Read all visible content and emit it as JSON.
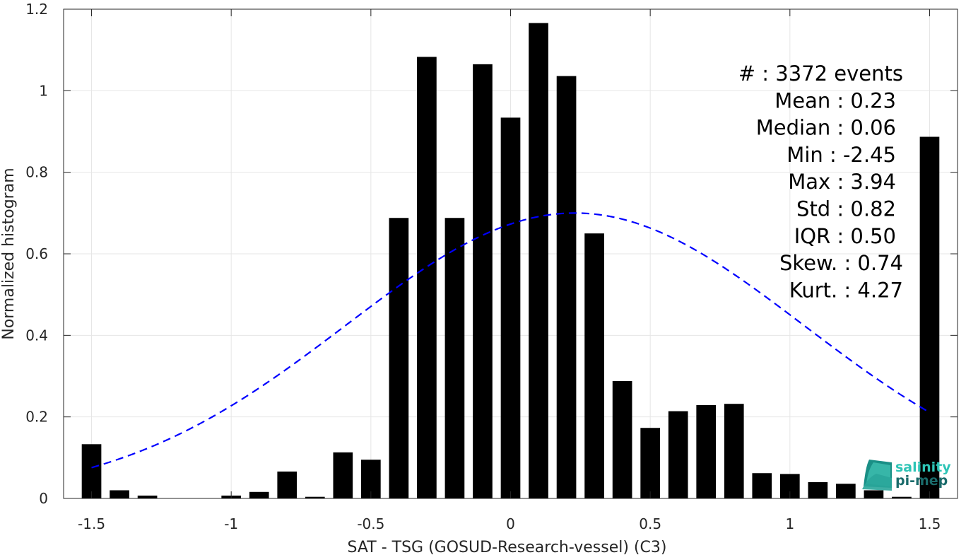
{
  "chart_data": {
    "type": "bar",
    "xlabel": "SAT - TSG (GOSUD-Research-vessel) (C3)",
    "ylabel": "Normalized histogram",
    "xlim": [
      -1.6,
      1.6
    ],
    "ylim": [
      0,
      1.2
    ],
    "grid": true,
    "x_ticks": [
      -1.5,
      -1,
      -0.5,
      0,
      0.5,
      1,
      1.5
    ],
    "x_tick_labels": [
      "-1.5",
      "-1",
      "-0.5",
      "0",
      "0.5",
      "1",
      "1.5"
    ],
    "y_ticks": [
      0,
      0.2,
      0.4,
      0.6,
      0.8,
      1,
      1.2
    ],
    "y_tick_labels": [
      "0",
      "0.2",
      "0.4",
      "0.6",
      "0.8",
      "1",
      "1.2"
    ],
    "bar_width": 0.07,
    "bars": {
      "x": [
        -1.5,
        -1.4,
        -1.3,
        -1.2,
        -1.1,
        -1.0,
        -0.9,
        -0.8,
        -0.7,
        -0.6,
        -0.5,
        -0.4,
        -0.3,
        -0.2,
        -0.1,
        0.0,
        0.1,
        0.2,
        0.3,
        0.4,
        0.5,
        0.6,
        0.7,
        0.8,
        0.9,
        1.0,
        1.1,
        1.2,
        1.3,
        1.4,
        1.5
      ],
      "values": [
        0.133,
        0.02,
        0.007,
        0.0,
        0.0,
        0.007,
        0.016,
        0.066,
        0.004,
        0.113,
        0.095,
        0.688,
        1.083,
        0.688,
        1.065,
        0.934,
        1.166,
        1.036,
        0.65,
        0.288,
        0.173,
        0.214,
        0.229,
        0.232,
        0.062,
        0.06,
        0.04,
        0.036,
        0.02,
        0.004,
        0.887
      ],
      "color": "#000000"
    },
    "normal_fit": {
      "mean": 0.23,
      "std": 0.82,
      "peak": 0.7,
      "x_start": -1.5,
      "x_end": 1.5,
      "color": "#0000ff",
      "style": "dashed"
    },
    "annotation": {
      "placement": "top-right",
      "lines": [
        "#  : 3372 events",
        "Mean : 0.23",
        "Median : 0.06",
        "Min : -2.45",
        "Max : 3.94",
        "Std : 0.82",
        "IQR : 0.50",
        "Skew. : 0.74",
        "Kurt. : 4.27"
      ]
    }
  },
  "logo": {
    "line1": "salinity",
    "line2": "pi-mep",
    "color1": "#2ec4b6",
    "color2": "#1a6b6b"
  }
}
